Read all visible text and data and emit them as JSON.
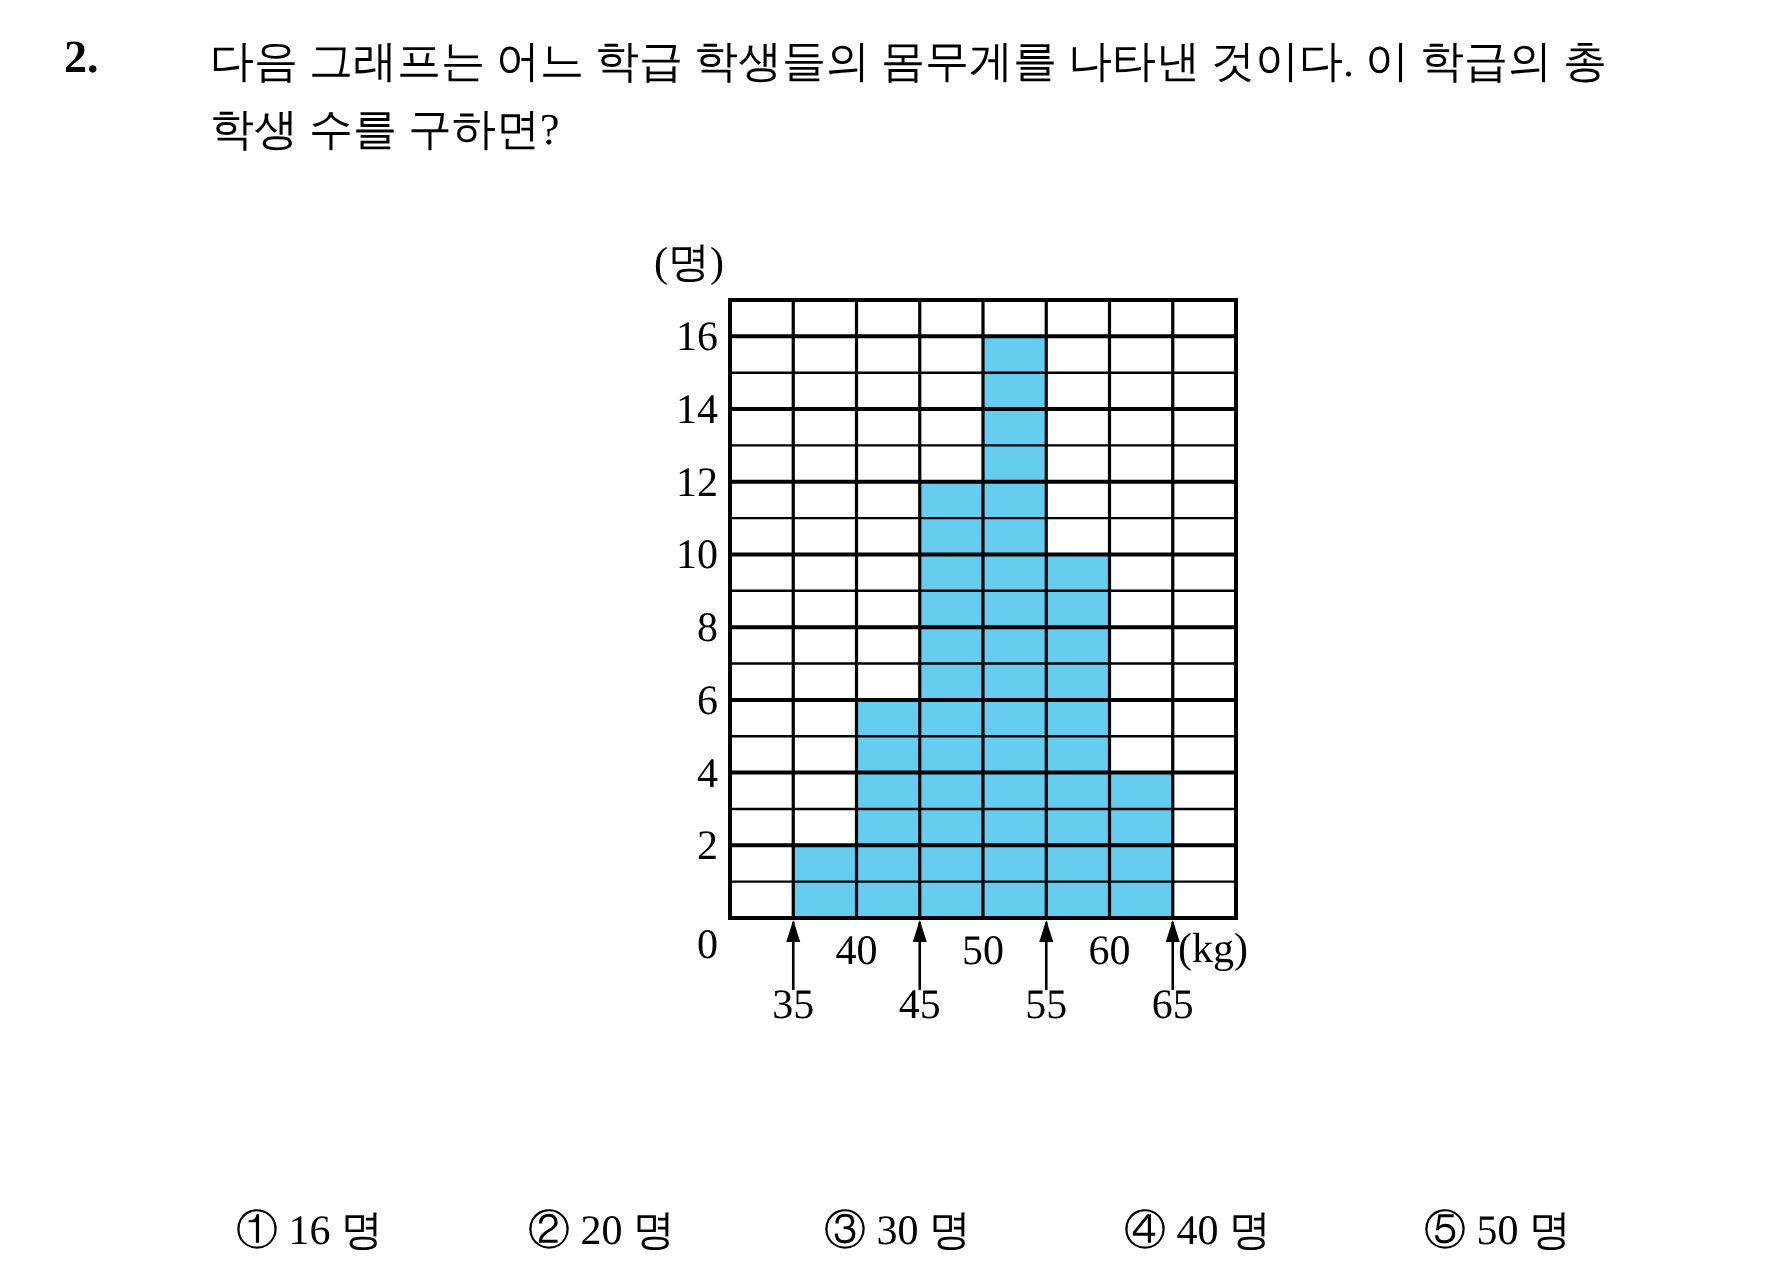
{
  "chart_data": {
    "type": "histogram",
    "title": "다음 그래프는 어느 학급 학생들의 몸무게를 나타낸 것이다. 이 학급의 총 학생 수를 구하면?",
    "xlabel": "(kg)",
    "ylabel": "(명)",
    "bins": [
      35,
      40,
      45,
      50,
      55,
      60,
      65
    ],
    "values": [
      2,
      6,
      12,
      16,
      10,
      4
    ],
    "color": "#66ccf0",
    "xlim": [
      30,
      70
    ],
    "xticks": [
      {
        "value": 30,
        "label": null
      },
      {
        "value": 35,
        "label": null
      },
      40,
      {
        "value": 45,
        "label": null
      },
      50,
      {
        "value": 55,
        "label": null
      },
      60,
      {
        "value": 65,
        "label": null
      },
      {
        "value": 70,
        "label": null
      }
    ],
    "ylim": [
      0,
      17
    ],
    "yticks": [
      0,
      {
        "value": 1,
        "label": null
      },
      2,
      {
        "value": 3,
        "label": null
      },
      4,
      {
        "value": 5,
        "label": null
      },
      6,
      {
        "value": 7,
        "label": null
      },
      8,
      {
        "value": 9,
        "label": null
      },
      10,
      {
        "value": 11,
        "label": null
      },
      12,
      {
        "value": 13,
        "label": null
      },
      14,
      {
        "value": 15,
        "label": null
      },
      16,
      {
        "value": 17,
        "label": null
      }
    ],
    "grid": true,
    "annotations": [
      "2.",
      "① 16 명",
      "② 20 명",
      "③ 30 명",
      "④ 40 명",
      "⑤ 50 명",
      {
        "text": "35",
        "x": 35,
        "y": 0
      },
      {
        "text": "45",
        "x": 45,
        "y": 0
      },
      {
        "text": "55",
        "x": 55,
        "y": 0
      },
      {
        "text": "65",
        "x": 65,
        "y": 0
      }
    ]
  }
}
